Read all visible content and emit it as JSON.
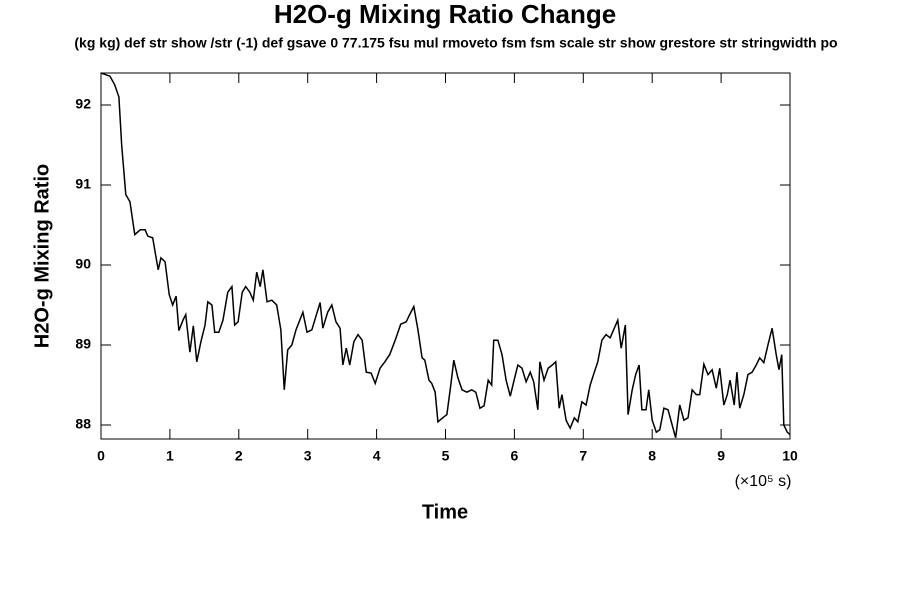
{
  "chart_data": {
    "type": "line",
    "title": "H2O-g Mixing Ratio Change",
    "subtitle": "(kg kg) def str show /str (-1) def gsave 0 77.175 fsu mul rmoveto fsm fsm scale str show grestore str stringwidth po",
    "x_label": "Time",
    "x_unit": "(×10⁵ s)",
    "y_label": "H2O-g Mixing Ratio",
    "xlim": [
      0,
      10
    ],
    "xticks": [
      0,
      1,
      2,
      3,
      4,
      5,
      6,
      7,
      8,
      9,
      10
    ],
    "ylim": [
      87.825,
      92.4
    ],
    "yticks": [
      88,
      89,
      90,
      91,
      92
    ],
    "color": "#000000",
    "x": [
      0,
      0.13,
      0.2,
      0.26,
      0.3,
      0.36,
      0.42,
      0.49,
      0.57,
      0.64,
      0.68,
      0.75,
      0.83,
      0.87,
      0.93,
      0.99,
      1.04,
      1.09,
      1.13,
      1.19,
      1.23,
      1.29,
      1.34,
      1.39,
      1.45,
      1.51,
      1.55,
      1.61,
      1.65,
      1.71,
      1.77,
      1.84,
      1.9,
      1.94,
      1.99,
      2.05,
      2.1,
      2.16,
      2.21,
      2.26,
      2.31,
      2.35,
      2.41,
      2.48,
      2.55,
      2.61,
      2.66,
      2.71,
      2.77,
      2.83,
      2.93,
      2.99,
      3.06,
      3.12,
      3.18,
      3.22,
      3.29,
      3.35,
      3.41,
      3.47,
      3.51,
      3.56,
      3.61,
      3.67,
      3.73,
      3.79,
      3.85,
      3.92,
      3.98,
      4.05,
      4.12,
      4.19,
      4.27,
      4.35,
      4.43,
      4.48,
      4.54,
      4.6,
      4.66,
      4.7,
      4.76,
      4.8,
      4.85,
      4.89,
      4.96,
      5.02,
      5.08,
      5.12,
      5.18,
      5.24,
      5.31,
      5.38,
      5.44,
      5.5,
      5.56,
      5.62,
      5.67,
      5.7,
      5.76,
      5.82,
      5.88,
      5.94,
      5.99,
      6.05,
      6.11,
      6.17,
      6.23,
      6.28,
      6.34,
      6.37,
      6.43,
      6.49,
      6.55,
      6.6,
      6.65,
      6.69,
      6.75,
      6.81,
      6.87,
      6.92,
      6.98,
      7.04,
      7.1,
      7.16,
      7.21,
      7.27,
      7.33,
      7.39,
      7.45,
      7.5,
      7.55,
      7.61,
      7.65,
      7.71,
      7.76,
      7.81,
      7.85,
      7.91,
      7.95,
      8,
      8.06,
      8.11,
      8.17,
      8.23,
      8.29,
      8.34,
      8.4,
      8.46,
      8.52,
      8.58,
      8.64,
      8.69,
      8.75,
      8.81,
      8.87,
      8.93,
      8.98,
      9.04,
      9.09,
      9.13,
      9.19,
      9.23,
      9.27,
      9.33,
      9.39,
      9.45,
      9.51,
      9.56,
      9.62,
      9.68,
      9.74,
      9.8,
      9.84,
      9.88,
      9.91,
      9.96,
      10
    ],
    "values": [
      92.4,
      92.36,
      92.25,
      92.1,
      91.5,
      90.88,
      90.79,
      90.38,
      90.44,
      90.44,
      90.36,
      90.34,
      89.94,
      90.09,
      90.04,
      89.63,
      89.5,
      89.61,
      89.18,
      89.31,
      89.38,
      88.91,
      89.24,
      88.79,
      89.04,
      89.25,
      89.54,
      89.5,
      89.16,
      89.16,
      89.31,
      89.66,
      89.73,
      89.25,
      89.29,
      89.66,
      89.73,
      89.66,
      89.56,
      89.91,
      89.73,
      89.94,
      89.54,
      89.56,
      89.5,
      89.19,
      88.44,
      88.94,
      89,
      89.19,
      89.41,
      89.16,
      89.19,
      89.36,
      89.53,
      89.21,
      89.41,
      89.5,
      89.29,
      89.21,
      88.75,
      88.96,
      88.75,
      89.04,
      89.13,
      89.06,
      88.66,
      88.65,
      88.52,
      88.71,
      88.79,
      88.88,
      89.06,
      89.26,
      89.29,
      89.38,
      89.48,
      89.19,
      88.84,
      88.81,
      88.56,
      88.52,
      88.41,
      88.04,
      88.09,
      88.13,
      88.52,
      88.81,
      88.59,
      88.44,
      88.41,
      88.44,
      88.41,
      88.21,
      88.24,
      88.56,
      88.5,
      89.06,
      89.06,
      88.88,
      88.56,
      88.36,
      88.54,
      88.75,
      88.71,
      88.54,
      88.66,
      88.54,
      88.19,
      88.79,
      88.56,
      88.71,
      88.75,
      88.79,
      88.21,
      88.38,
      88.06,
      87.96,
      88.09,
      88.04,
      88.29,
      88.25,
      88.5,
      88.66,
      88.79,
      89.06,
      89.13,
      89.09,
      89.21,
      89.31,
      88.96,
      89.25,
      88.13,
      88.44,
      88.63,
      88.75,
      88.19,
      88.19,
      88.44,
      88.06,
      87.91,
      87.94,
      88.21,
      88.19,
      88,
      87.84,
      88.25,
      88.06,
      88.09,
      88.44,
      88.38,
      88.38,
      88.76,
      88.63,
      88.69,
      88.46,
      88.71,
      88.25,
      88.38,
      88.56,
      88.25,
      88.66,
      88.21,
      88.38,
      88.63,
      88.66,
      88.75,
      88.84,
      88.78,
      89,
      89.21,
      88.88,
      88.69,
      88.88,
      88,
      87.91,
      87.88
    ]
  }
}
